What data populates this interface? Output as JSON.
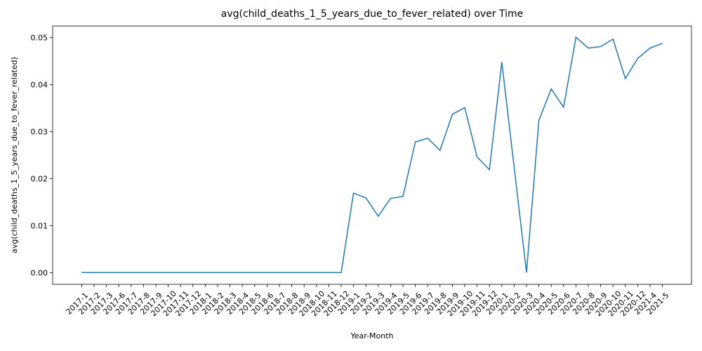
{
  "chart_data": {
    "type": "line",
    "title": "avg(child_deaths_1_5_years_due_to_fever_related) over Time",
    "x_label": "Year-Month",
    "y_label": "avg(child_deaths_1_5_years_due_to_fever_related)",
    "categories": [
      "2017-1",
      "2017-2",
      "2017-3",
      "2017-6",
      "2017-7",
      "2017-8",
      "2017-9",
      "2017-10",
      "2017-11",
      "2017-12",
      "2018-1",
      "2018-2",
      "2018-3",
      "2018-4",
      "2018-5",
      "2018-6",
      "2018-7",
      "2018-8",
      "2018-9",
      "2018-10",
      "2018-11",
      "2018-12",
      "2019-1",
      "2019-2",
      "2019-3",
      "2019-4",
      "2019-5",
      "2019-6",
      "2019-7",
      "2019-8",
      "2019-9",
      "2019-10",
      "2019-11",
      "2019-12",
      "2020-1",
      "2020-2",
      "2020-3",
      "2020-4",
      "2020-5",
      "2020-6",
      "2020-7",
      "2020-8",
      "2020-9",
      "2020-10",
      "2020-11",
      "2020-12",
      "2021-4",
      "2021-5"
    ],
    "series": [
      {
        "name": "avg(child_deaths_1_5_years_due_to_fever_related)",
        "color": "#1f77b4",
        "values": [
          0,
          0,
          0,
          0,
          0,
          0,
          0,
          0,
          0,
          0,
          0,
          0,
          0,
          0,
          0,
          0,
          0,
          0,
          0,
          0,
          0,
          0,
          0.0169,
          0.0159,
          0.012,
          0.0158,
          0.0162,
          0.0278,
          0.0286,
          0.026,
          0.0337,
          0.0351,
          0.0246,
          0.0219,
          0.0448,
          0.0224,
          0,
          0.0324,
          0.0391,
          0.0352,
          0.0501,
          0.0478,
          0.0481,
          0.0497,
          0.0413,
          0.0456,
          0.0478,
          0.0488
        ]
      }
    ],
    "ylim": [
      -0.0025,
      0.0525
    ],
    "yticks": [
      {
        "value": 0,
        "label": "0.00"
      },
      {
        "value": 0.01,
        "label": "0.01"
      },
      {
        "value": 0.02,
        "label": "0.02"
      },
      {
        "value": 0.03,
        "label": "0.03"
      },
      {
        "value": 0.04,
        "label": "0.04"
      },
      {
        "value": 0.05,
        "label": "0.05"
      }
    ]
  }
}
